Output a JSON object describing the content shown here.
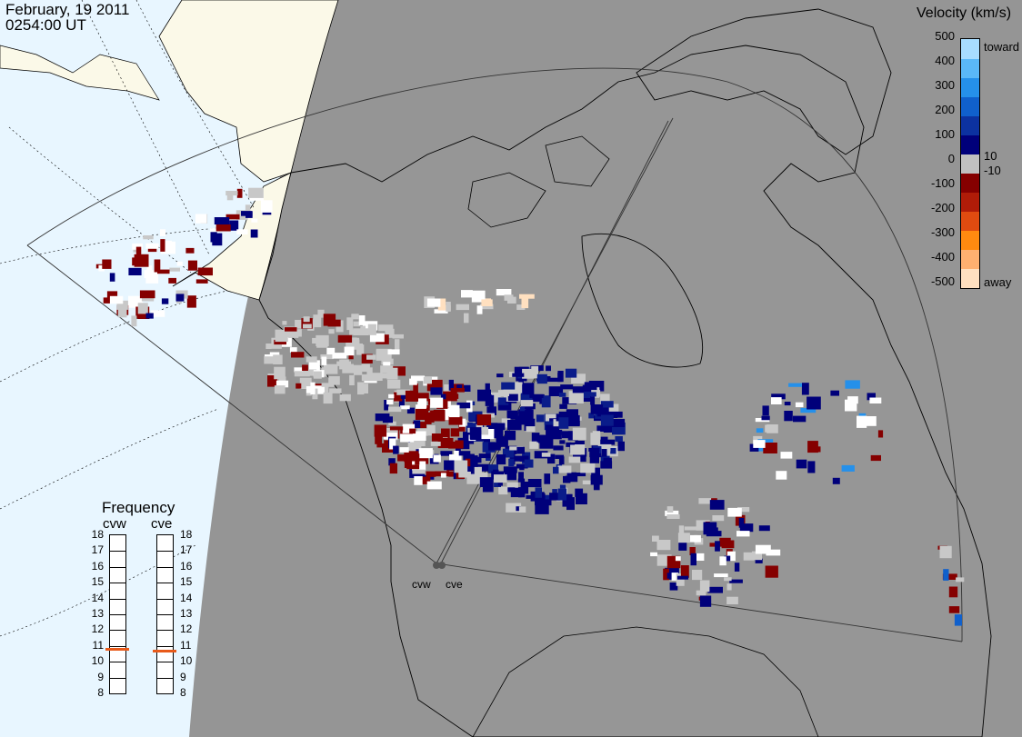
{
  "title": {
    "date": "February, 19 2011",
    "time": "0254:00 UT"
  },
  "velocity_legend": {
    "title": "Velocity (km/s)",
    "ticks": [
      "500",
      "400",
      "300",
      "200",
      "100",
      "10",
      "0",
      "-10",
      "-100",
      "-200",
      "-300",
      "-400",
      "-500"
    ],
    "toward_label": "toward",
    "away_label": "away",
    "colors": [
      "#ffe0c0",
      "#ffb070",
      "#ff8a10",
      "#e04b10",
      "#b01c08",
      "#850000",
      "#c0c0c0",
      "#00007a",
      "#0c32a0",
      "#1060cc",
      "#2590ea",
      "#5ab8f8",
      "#a8dcff"
    ]
  },
  "frequency_panel": {
    "title": "Frequency",
    "radars": [
      {
        "name": "cvw",
        "freq_mhz": 10.8
      },
      {
        "name": "cve",
        "freq_mhz": 10.7
      }
    ],
    "scale": [
      "18",
      "17",
      "16",
      "15",
      "14",
      "13",
      "12",
      "11",
      "10",
      "9",
      "8"
    ]
  },
  "radar_sites": [
    "cvw",
    "cve"
  ],
  "colors": {
    "ocean_gray": "#959595",
    "land_fill": "#ffffff",
    "daylight_ocean": "#e8f6ff",
    "daylight_land": "#fbf9e8",
    "no_data_gray": "#c8c8c8",
    "freq_marker": "#e85a1a"
  }
}
